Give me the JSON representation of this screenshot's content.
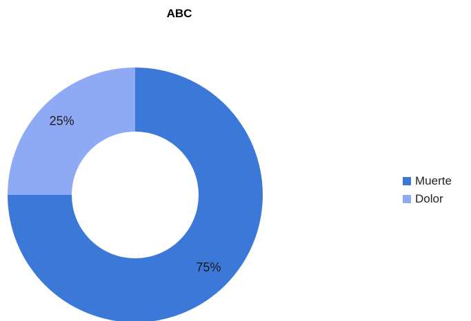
{
  "chart_data": {
    "type": "pie",
    "title": "ABC",
    "donut": true,
    "legend_position": "right",
    "slices": [
      {
        "label": "Muerte",
        "value": 75,
        "display": "75%",
        "color": "#3c78d8"
      },
      {
        "label": "Dolor",
        "value": 25,
        "display": "25%",
        "color": "#8faaf4"
      }
    ]
  }
}
